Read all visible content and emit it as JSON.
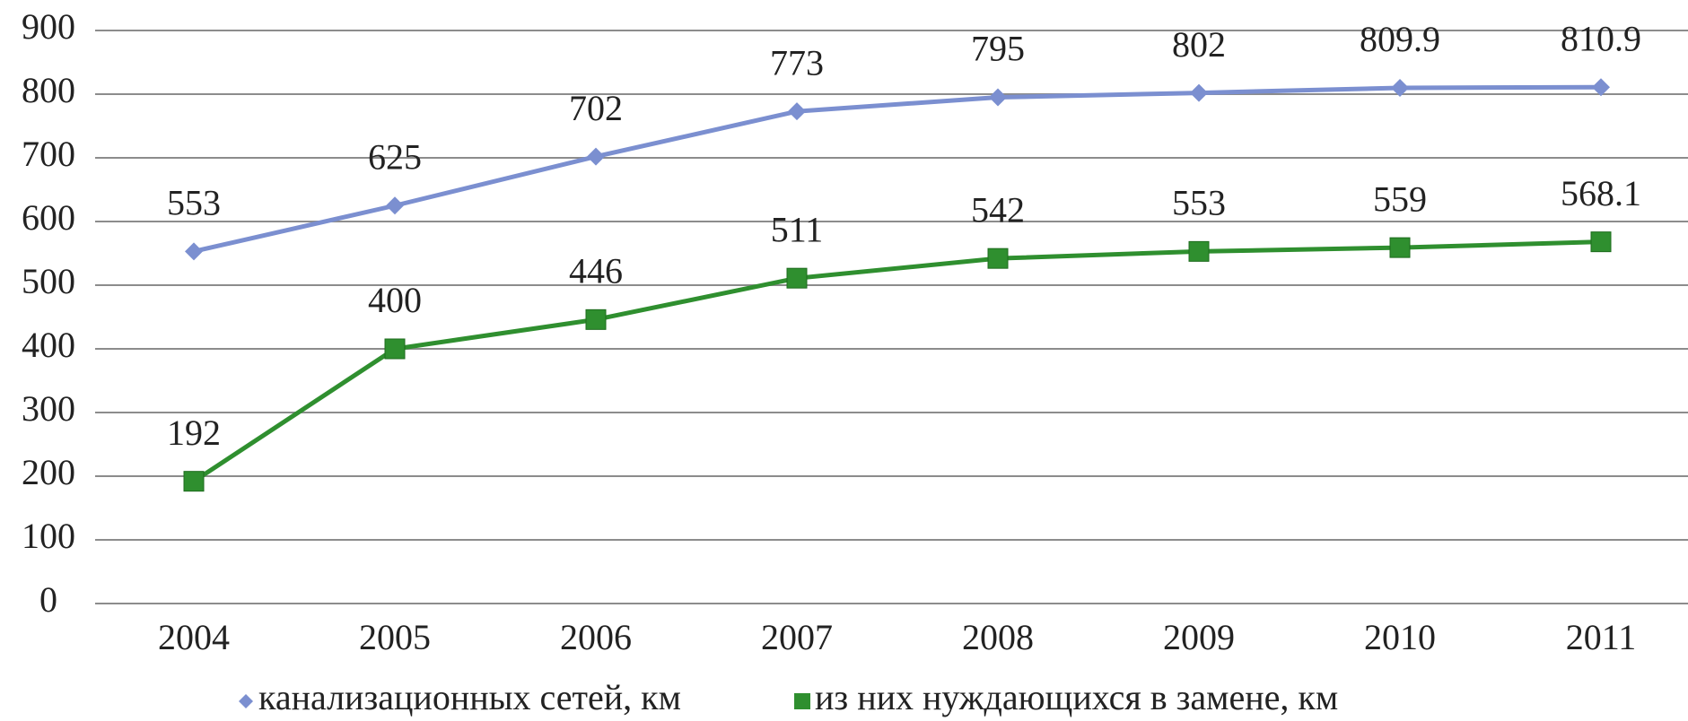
{
  "chart_data": {
    "type": "line",
    "categories": [
      "2004",
      "2005",
      "2006",
      "2007",
      "2008",
      "2009",
      "2010",
      "2011"
    ],
    "series": [
      {
        "name": "канализационных сетей, км",
        "color": "#7b8fd0",
        "marker": "diamond",
        "values": [
          553,
          625,
          702,
          773,
          795,
          802,
          809.9,
          810.9
        ]
      },
      {
        "name": "из них нуждающихся в замене, км",
        "color": "#2f8f2f",
        "marker": "square",
        "values": [
          192,
          400,
          446,
          511,
          542,
          553,
          559,
          568.1
        ]
      }
    ],
    "ylim": [
      0,
      900
    ],
    "yticks": [
      0,
      100,
      200,
      300,
      400,
      500,
      600,
      700,
      800,
      900
    ],
    "grid": true
  }
}
